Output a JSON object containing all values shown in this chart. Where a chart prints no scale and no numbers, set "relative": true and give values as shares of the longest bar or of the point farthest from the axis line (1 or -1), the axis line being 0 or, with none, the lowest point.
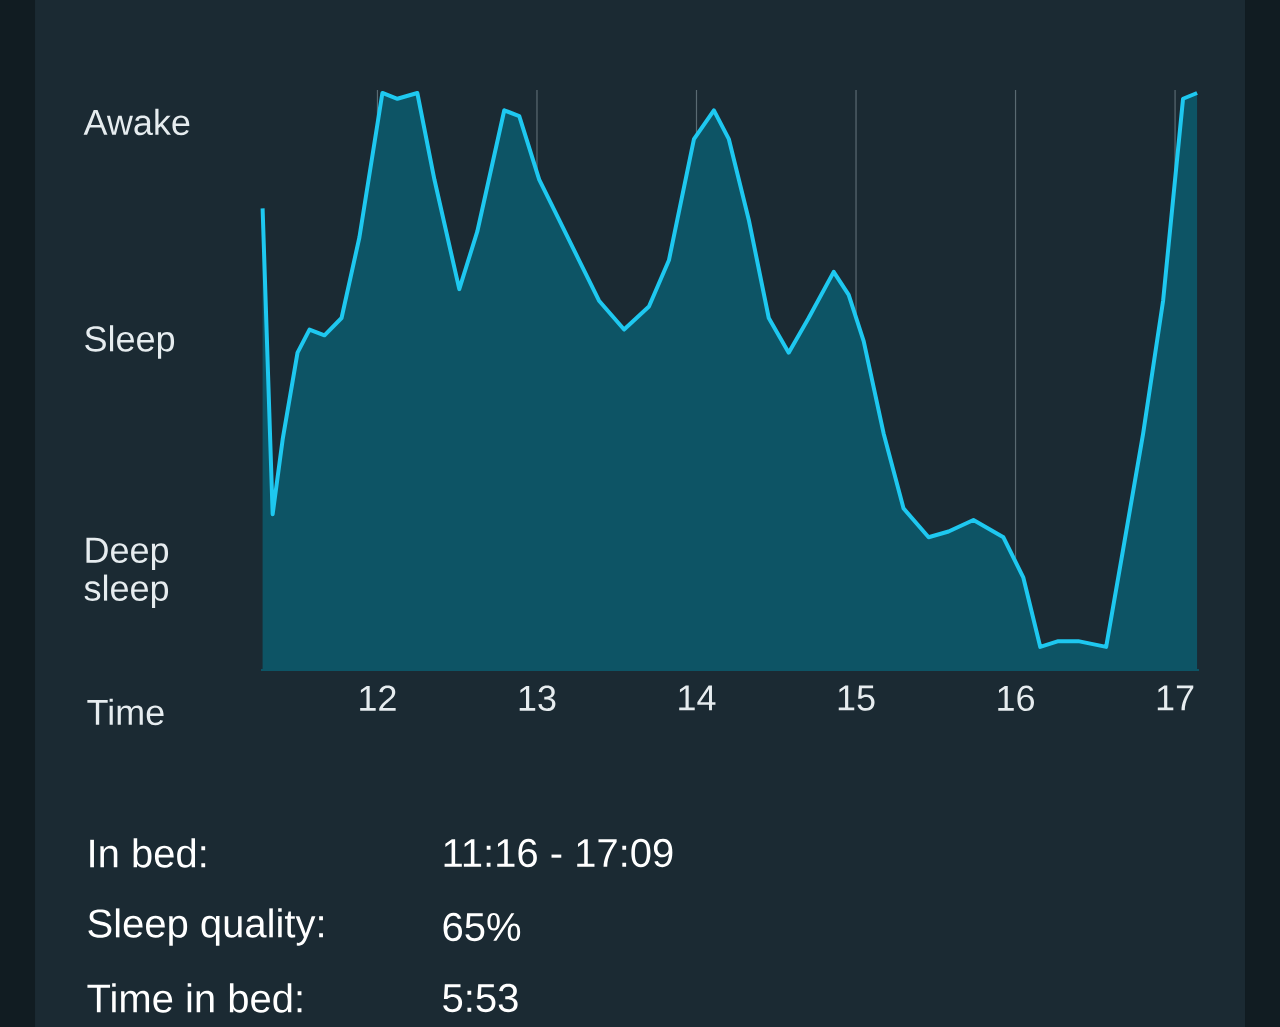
{
  "chart_data": {
    "type": "area",
    "relative": true,
    "xlabel": "Time",
    "x": [
      11.28,
      11.343,
      11.406,
      11.499,
      11.574,
      11.668,
      11.775,
      11.887,
      12.031,
      12.125,
      12.25,
      12.357,
      12.513,
      12.626,
      12.795,
      12.889,
      13.014,
      13.139,
      13.264,
      13.389,
      13.546,
      13.702,
      13.827,
      13.984,
      14.109,
      14.203,
      14.328,
      14.453,
      14.578,
      14.703,
      14.86,
      14.954,
      15.048,
      15.173,
      15.298,
      15.455,
      15.58,
      15.736,
      15.924,
      16.049,
      16.155,
      16.268,
      16.393,
      16.568,
      16.675,
      16.8,
      16.925,
      17.05,
      17.138
    ],
    "series": [
      {
        "color": "#1ec8f0",
        "values": [
          0.8,
          0.27,
          0.4,
          0.55,
          0.59,
          0.58,
          0.61,
          0.75,
          1.0,
          0.99,
          1.0,
          0.85,
          0.66,
          0.76,
          0.97,
          0.96,
          0.85,
          0.78,
          0.71,
          0.64,
          0.59,
          0.63,
          0.71,
          0.92,
          0.97,
          0.92,
          0.78,
          0.61,
          0.55,
          0.61,
          0.69,
          0.65,
          0.57,
          0.41,
          0.28,
          0.23,
          0.24,
          0.26,
          0.23,
          0.16,
          0.04,
          0.05,
          0.05,
          0.04,
          0.21,
          0.41,
          0.64,
          0.99,
          1.0
        ]
      }
    ],
    "xlim": [
      11.27,
      17.15
    ],
    "xticks": [
      12,
      13,
      14,
      15,
      16,
      17
    ],
    "grid": "x",
    "annotations": [
      "Awake",
      "Sleep",
      "Deep sleep",
      "In bed:",
      "11:16 - 17:09",
      "Sleep quality:",
      "65%",
      "Time in bed:",
      "5:53"
    ]
  }
}
